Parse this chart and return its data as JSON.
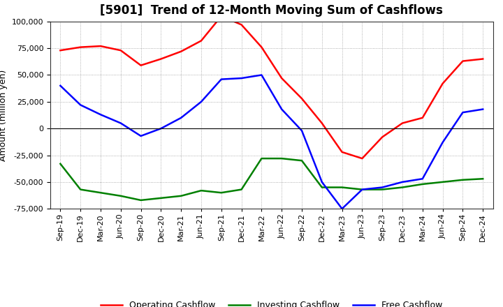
{
  "title": "[5901]  Trend of 12-Month Moving Sum of Cashflows",
  "ylabel": "Amount (million yen)",
  "ylim": [
    -75000,
    100000
  ],
  "yticks": [
    -75000,
    -50000,
    -25000,
    0,
    25000,
    50000,
    75000,
    100000
  ],
  "x_labels": [
    "Sep-19",
    "Dec-19",
    "Mar-20",
    "Jun-20",
    "Sep-20",
    "Dec-20",
    "Mar-21",
    "Jun-21",
    "Sep-21",
    "Dec-21",
    "Mar-22",
    "Jun-22",
    "Sep-22",
    "Dec-22",
    "Mar-23",
    "Jun-23",
    "Sep-23",
    "Dec-23",
    "Mar-24",
    "Jun-24",
    "Sep-24",
    "Dec-24"
  ],
  "operating": [
    73000,
    76000,
    77000,
    73000,
    59000,
    65000,
    72000,
    82000,
    105000,
    97000,
    76000,
    47000,
    28000,
    5000,
    -22000,
    -28000,
    -8000,
    5000,
    10000,
    42000,
    63000,
    65000
  ],
  "investing": [
    -33000,
    -57000,
    -60000,
    -63000,
    -67000,
    -65000,
    -63000,
    -58000,
    -60000,
    -57000,
    -28000,
    -28000,
    -30000,
    -55000,
    -55000,
    -57000,
    -57000,
    -55000,
    -52000,
    -50000,
    -48000,
    -47000
  ],
  "free": [
    40000,
    22000,
    13000,
    5000,
    -7000,
    0,
    10000,
    25000,
    46000,
    47000,
    50000,
    18000,
    -2000,
    -50000,
    -75000,
    -57000,
    -55000,
    -50000,
    -47000,
    -13000,
    15000,
    18000
  ],
  "op_color": "#ff0000",
  "inv_color": "#008000",
  "free_color": "#0000ff",
  "line_width": 1.8,
  "bg_color": "#ffffff",
  "plot_bg_color": "#ffffff",
  "grid_color": "#999999",
  "title_fontsize": 12,
  "label_fontsize": 9,
  "tick_fontsize": 8,
  "legend_fontsize": 9
}
